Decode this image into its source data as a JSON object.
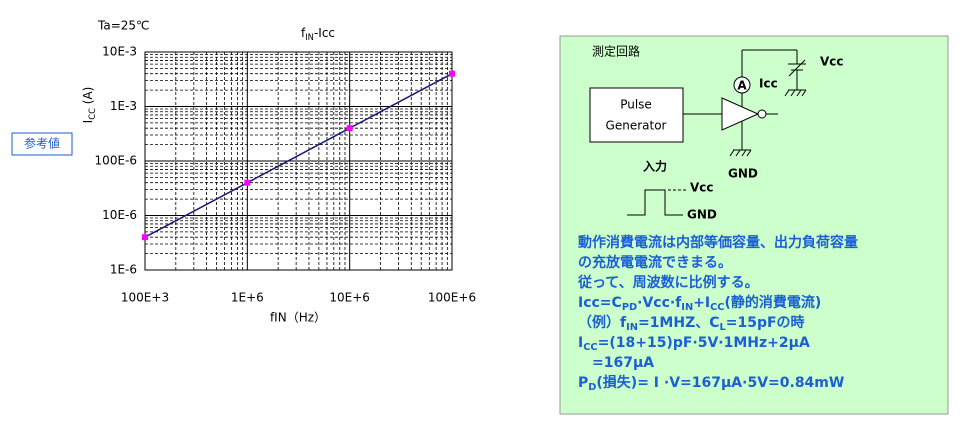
{
  "chart_data": {
    "type": "line",
    "title": [
      "f",
      "IN",
      "-Icc"
    ],
    "annotation": "Ta=25℃",
    "badge": "参考値",
    "x_label": "fIN（Hz）",
    "y_label": [
      "I",
      "CC",
      " (A)"
    ],
    "x": [
      100000,
      1000000,
      10000000,
      100000000
    ],
    "series": [
      {
        "color": "#1a1a7a",
        "marker_color": "#ff00ff",
        "values": [
          4e-06,
          4e-05,
          0.0004,
          0.004
        ]
      }
    ],
    "xlog": true,
    "ylog": true,
    "grid": true,
    "xlim": [
      100000,
      100000000
    ],
    "xticks": [
      {
        "value": 100000,
        "label": "100E+3"
      },
      {
        "value": 1000000,
        "label": "1E+6"
      },
      {
        "value": 10000000,
        "label": "10E+6"
      },
      {
        "value": 100000000,
        "label": "100E+6"
      }
    ],
    "ylim": [
      1e-06,
      0.01
    ],
    "yticks": [
      {
        "value": 1e-06,
        "label": "1E-6"
      },
      {
        "value": 1e-05,
        "label": "10E-6"
      },
      {
        "value": 0.0001,
        "label": "100E-6"
      },
      {
        "value": 0.001,
        "label": "1E-3"
      },
      {
        "value": 0.01,
        "label": "10E-3"
      }
    ]
  },
  "circuit": {
    "title": "測定回路",
    "pulse_generator": [
      "Pulse",
      "Generator"
    ],
    "ammeter": "A",
    "icc": "Icc",
    "vcc": "Vcc",
    "gnd": "GND",
    "input": "入力",
    "wave_vcc": "Vcc",
    "wave_gnd": "GND",
    "notes": [
      [
        "動作消費電流は内部等価容量、出力負荷容量"
      ],
      [
        "の充放電電流できまる。"
      ],
      [
        "従って、周波数に比例する。"
      ],
      [
        "Icc=C",
        "PD",
        "·Vcc·f",
        "IN",
        "+I",
        "CC",
        "(静的消費電流)"
      ],
      [
        "（例）f",
        "IN",
        "=1MHZ、C",
        "L",
        "=15pFの時"
      ],
      [
        "I",
        "CC",
        "=(18+15)pF·5V·1MHz+2μA"
      ],
      [
        "　=167μA"
      ],
      [
        "P",
        "D",
        "(損失)= I ·V=167μA·5V=0.84mW"
      ]
    ]
  }
}
